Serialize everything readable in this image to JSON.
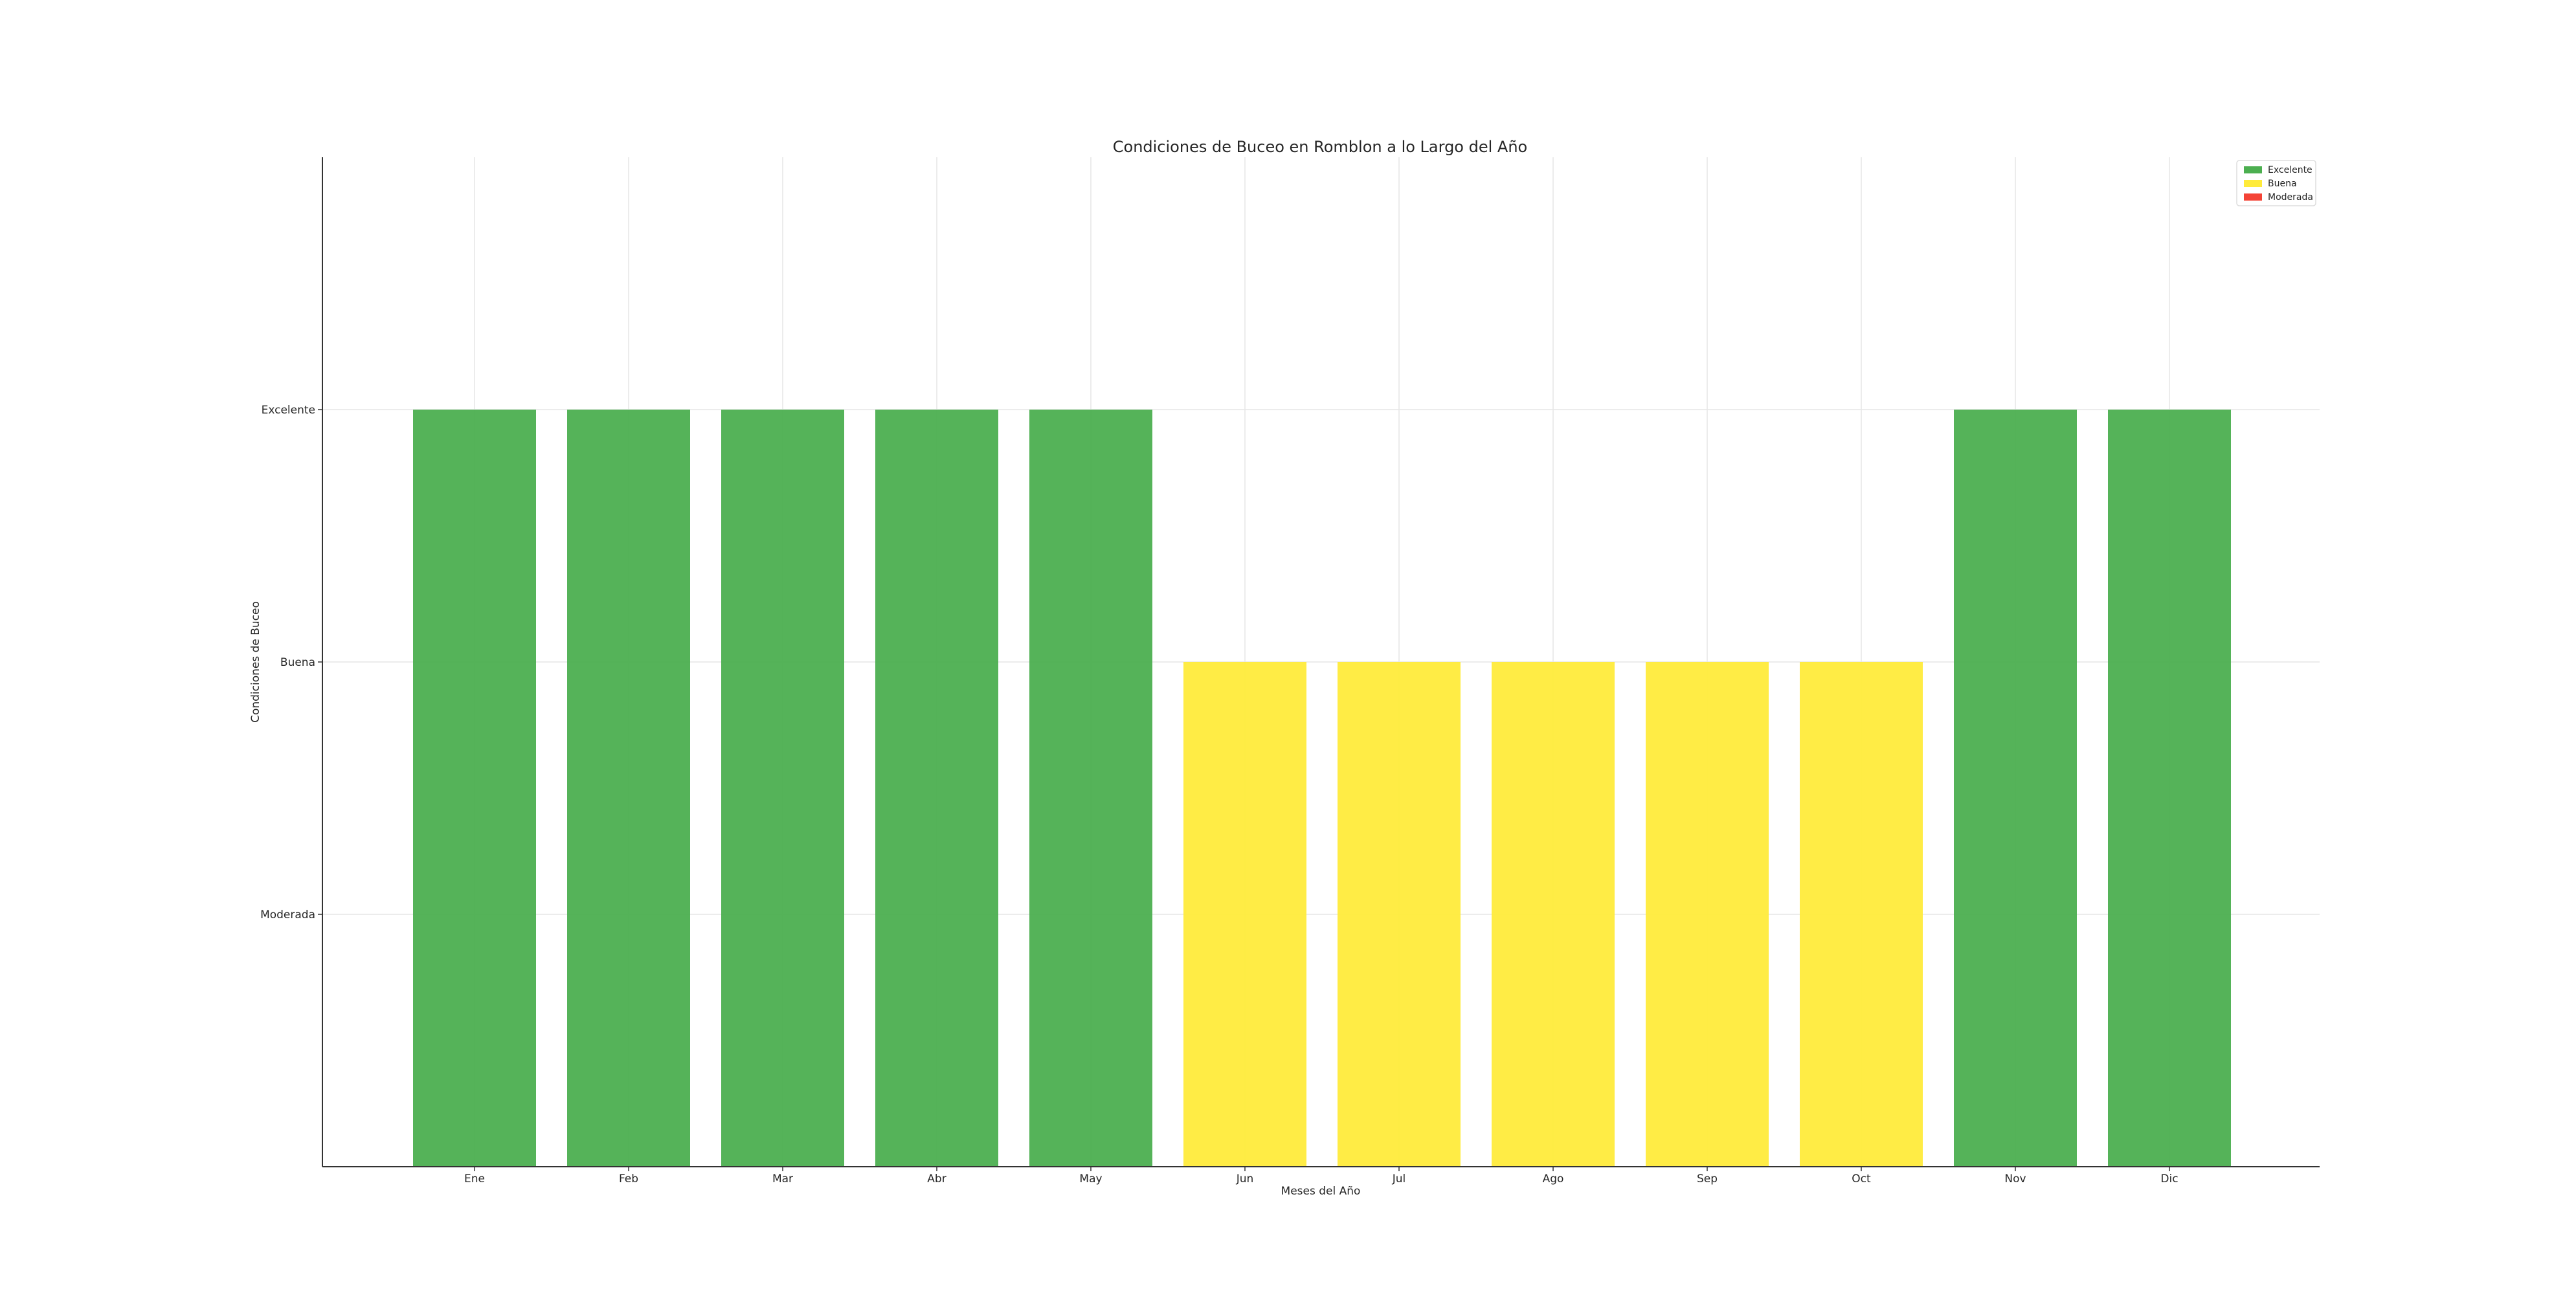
{
  "chart_data": {
    "type": "bar",
    "title": "Condiciones de Buceo en Romblon a lo Largo del Año",
    "xlabel": "Meses del Año",
    "ylabel": "Condiciones de Buceo",
    "categories": [
      "Ene",
      "Feb",
      "Mar",
      "Abr",
      "May",
      "Jun",
      "Jul",
      "Ago",
      "Sep",
      "Oct",
      "Nov",
      "Dic"
    ],
    "values": [
      3,
      3,
      3,
      3,
      3,
      2,
      2,
      2,
      2,
      2,
      3,
      3
    ],
    "value_labels": [
      "Excelente",
      "Excelente",
      "Excelente",
      "Excelente",
      "Excelente",
      "Buena",
      "Buena",
      "Buena",
      "Buena",
      "Buena",
      "Excelente",
      "Excelente"
    ],
    "y_ticks": [
      {
        "value": 1,
        "label": "Moderada"
      },
      {
        "value": 2,
        "label": "Buena"
      },
      {
        "value": 3,
        "label": "Excelente"
      }
    ],
    "ylim": [
      0,
      4
    ],
    "grid": true,
    "legend": {
      "placement": "top-right",
      "entries": [
        {
          "label": "Excelente",
          "color": "#4caf50"
        },
        {
          "label": "Buena",
          "color": "#ffeb3b"
        },
        {
          "label": "Moderada",
          "color": "#f44336"
        }
      ]
    },
    "colors": {
      "3": "#4caf50",
      "2": "#ffeb3b",
      "1": "#f44336"
    }
  }
}
